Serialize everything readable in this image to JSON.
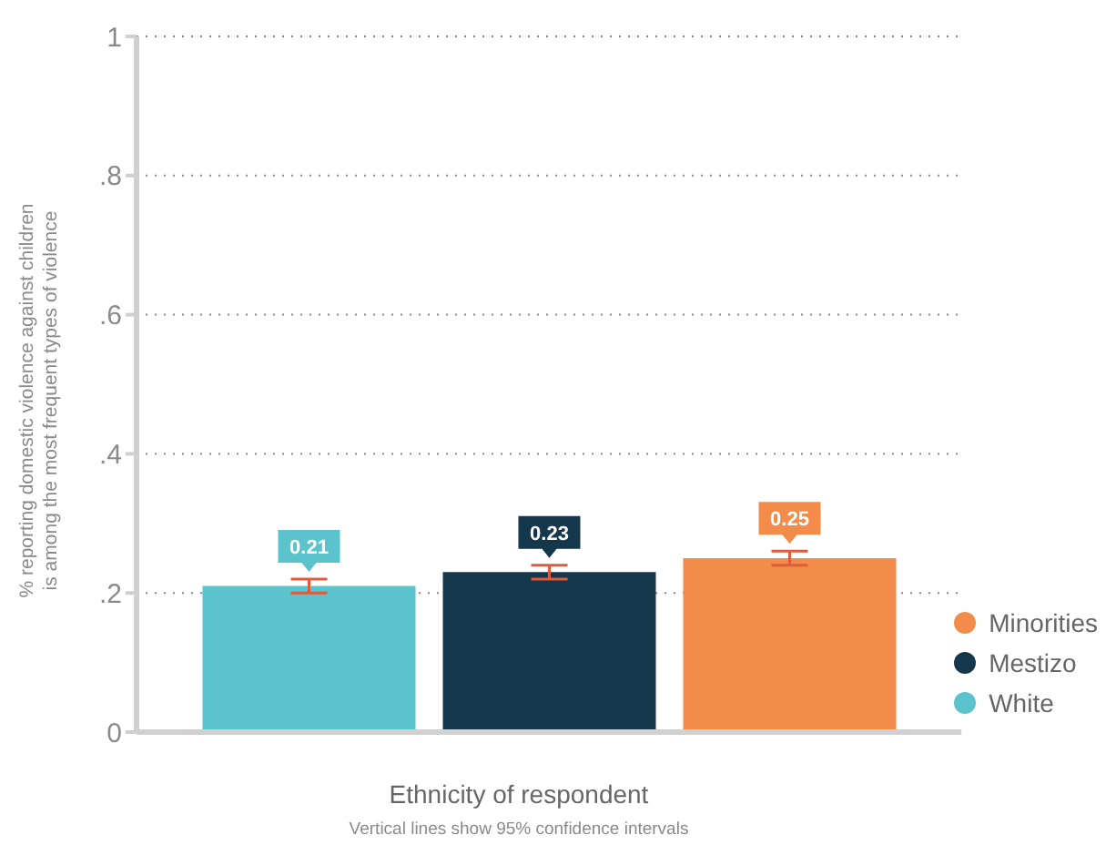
{
  "chart_data": {
    "type": "bar",
    "xlabel": "Ethnicity of respondent",
    "ylabel": "% reporting domestic violence against children is among the most frequent types of violence",
    "annotations": [
      "Vertical lines show 95% confidence intervals"
    ],
    "categories": [
      null
    ],
    "series": [
      {
        "name": "White",
        "color": "#5bc3cb",
        "values": [
          0.21
        ],
        "errors": [
          0.01
        ]
      },
      {
        "name": "Mestizo",
        "color": "#15374b",
        "values": [
          0.23
        ],
        "errors": [
          0.01
        ]
      },
      {
        "name": "Minorities",
        "color": "#f38c4a",
        "values": [
          0.25
        ],
        "errors": [
          0.01
        ]
      }
    ],
    "ylim": [
      0,
      1
    ],
    "yticks": [
      0,
      {
        "value": 0.2,
        "label": ".2"
      },
      {
        "value": 0.4,
        "label": ".4"
      },
      {
        "value": 0.6,
        "label": ".6"
      },
      {
        "value": 0.8,
        "label": ".8"
      },
      1
    ],
    "grid": "y",
    "legend": "bottom right",
    "data_labels": true
  }
}
